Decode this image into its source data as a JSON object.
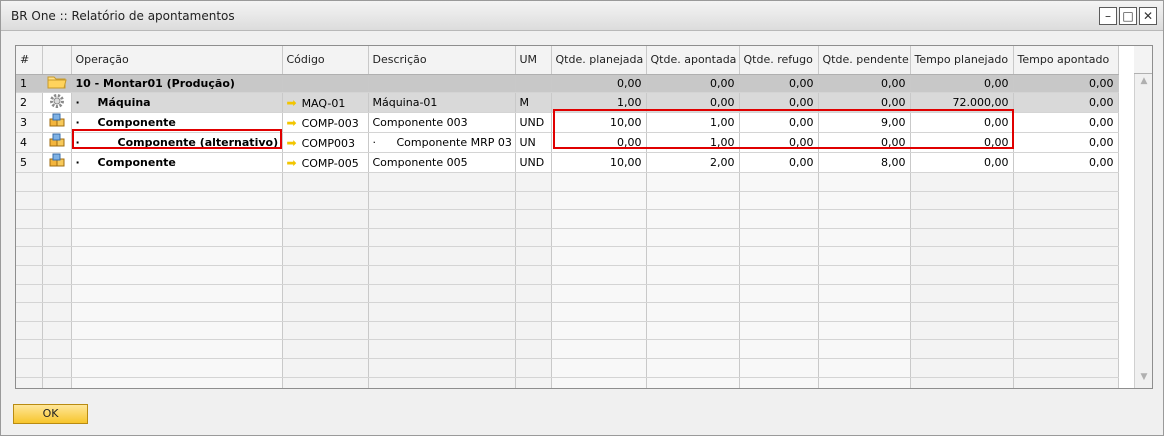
{
  "window": {
    "title": "BR One :: Relatório de apontamentos"
  },
  "columns": [
    "#",
    "",
    "Operação",
    "Código",
    "Descrição",
    "UM",
    "Qtde. planejada",
    "Qtde. apontada",
    "Qtde. refugo",
    "Qtde. pendente",
    "Tempo planejado",
    "Tempo apontado"
  ],
  "rows": [
    {
      "n": "1",
      "op": "10 - Montar01 (Produção)",
      "code": "",
      "desc": "",
      "um": "",
      "qp": "0,00",
      "qa": "0,00",
      "qr": "0,00",
      "qpe": "0,00",
      "tp": "0,00",
      "ta": "0,00"
    },
    {
      "n": "2",
      "op": "Máquina",
      "code": "MAQ-01",
      "desc": "Máquina-01",
      "um": "M",
      "qp": "1,00",
      "qa": "0,00",
      "qr": "0,00",
      "qpe": "0,00",
      "tp": "72.000,00",
      "ta": "0,00"
    },
    {
      "n": "3",
      "op": "Componente",
      "code": "COMP-003",
      "desc": "Componente 003",
      "um": "UND",
      "qp": "10,00",
      "qa": "1,00",
      "qr": "0,00",
      "qpe": "9,00",
      "tp": "0,00",
      "ta": "0,00"
    },
    {
      "n": "4",
      "op": "Componente (alternativo)",
      "code": "COMP003",
      "desc": "Componente MRP 03",
      "um": "UN",
      "qp": "0,00",
      "qa": "1,00",
      "qr": "0,00",
      "qpe": "0,00",
      "tp": "0,00",
      "ta": "0,00"
    },
    {
      "n": "5",
      "op": "Componente",
      "code": "COMP-005",
      "desc": "Componente 005",
      "um": "UND",
      "qp": "10,00",
      "qa": "2,00",
      "qr": "0,00",
      "qpe": "8,00",
      "tp": "0,00",
      "ta": "0,00"
    }
  ],
  "icons": {
    "row1": "folder-icon",
    "row2": "gear-icon",
    "row3": "cubes-icon",
    "row4": "cubes-icon",
    "row5": "cubes-icon",
    "code_link": "arrow-right-icon"
  },
  "bullet": "·",
  "ok_label": "OK",
  "colors": {
    "highlight": "#e00000",
    "ok_button": "#f7c52c",
    "link_arrow": "#f2c500"
  }
}
